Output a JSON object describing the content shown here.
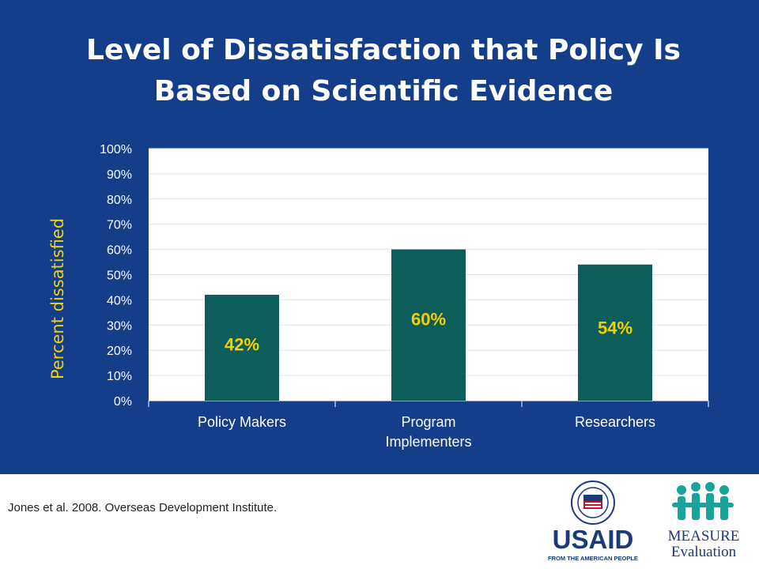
{
  "slide": {
    "title_line1": "Level of Dissatisfaction that Policy Is",
    "title_line2": "Based on Scientific Evidence",
    "y_axis_label": "Percent dissatisfied",
    "citation": "Jones et al. 2008. Overseas Development Institute."
  },
  "logos": {
    "usaid_text": "USAID",
    "usaid_tagline": "FROM THE AMERICAN PEOPLE",
    "measure_line1": "MEASURE",
    "measure_line2": "Evaluation"
  },
  "colors": {
    "background": "#143d8a",
    "bar": "#0d5e5a",
    "data_label": "#f5d000",
    "axis_text": "#ffffff"
  },
  "chart_data": {
    "type": "bar",
    "title": "Level of Dissatisfaction that Policy Is Based on Scientific Evidence",
    "categories": [
      [
        "Policy Makers"
      ],
      [
        "Program",
        "Implementers"
      ],
      [
        "Researchers"
      ]
    ],
    "values": [
      42,
      60,
      54
    ],
    "data_labels": [
      "42%",
      "60%",
      "54%"
    ],
    "ylabel": "Percent dissatisfied",
    "ylim": [
      0,
      100
    ],
    "y_ticks": [
      0,
      10,
      20,
      30,
      40,
      50,
      60,
      70,
      80,
      90,
      100
    ],
    "y_tick_labels": [
      "0%",
      "10%",
      "20%",
      "30%",
      "40%",
      "50%",
      "60%",
      "70%",
      "80%",
      "90%",
      "100%"
    ],
    "grid": true,
    "legend": "none"
  }
}
